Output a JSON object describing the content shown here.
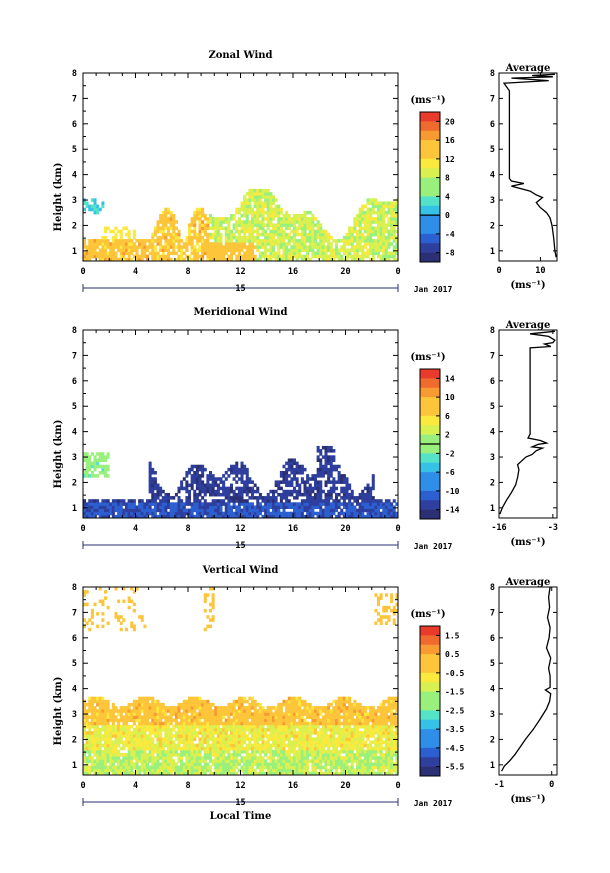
{
  "chart_data": [
    {
      "type": "heatmap",
      "title": "Zonal Wind",
      "ylabel": "Height (km)",
      "xticks": [
        "0",
        "4",
        "8",
        "12",
        "16",
        "20",
        "0"
      ],
      "yticks": [
        "1",
        "2",
        "3",
        "4",
        "5",
        "6",
        "7",
        "8"
      ],
      "day_label": "15",
      "date_label": "Jan 2017",
      "unit_label": "(ms⁻¹)",
      "colorbar": {
        "ticks": [
          "20",
          "16",
          "12",
          "8",
          "4",
          "0",
          "-4",
          "-8"
        ],
        "range": [
          -10,
          22
        ],
        "zero_line": 0
      },
      "avg_profile": {
        "title": "Average",
        "xticks": [
          "0",
          "10"
        ],
        "xlabel": "(ms⁻¹)",
        "xlim": [
          0,
          14
        ],
        "points": [
          [
            13.8,
            0.75
          ],
          [
            13.5,
            1.0
          ],
          [
            13.2,
            1.5
          ],
          [
            12.8,
            2.0
          ],
          [
            12.3,
            2.3
          ],
          [
            11.5,
            2.5
          ],
          [
            10.0,
            2.7
          ],
          [
            9.0,
            2.9
          ],
          [
            10.5,
            3.1
          ],
          [
            9.0,
            3.2
          ],
          [
            7.5,
            3.35
          ],
          [
            3.0,
            3.55
          ],
          [
            6.0,
            3.65
          ],
          [
            3.0,
            3.75
          ],
          [
            2.5,
            3.85
          ],
          [
            2.5,
            6.5
          ],
          [
            2.5,
            7.3
          ],
          [
            1.2,
            7.6
          ],
          [
            12.0,
            7.7
          ],
          [
            3.0,
            7.8
          ],
          [
            13.0,
            7.85
          ],
          [
            8.0,
            7.9
          ],
          [
            13.5,
            7.95
          ]
        ]
      }
    },
    {
      "type": "heatmap",
      "title": "Meridional Wind",
      "ylabel": "Height (km)",
      "xticks": [
        "0",
        "4",
        "8",
        "12",
        "16",
        "20",
        "0"
      ],
      "yticks": [
        "1",
        "2",
        "3",
        "4",
        "5",
        "6",
        "7",
        "8"
      ],
      "day_label": "15",
      "date_label": "Jan 2017",
      "unit_label": "(ms⁻¹)",
      "colorbar": {
        "ticks": [
          "14",
          "10",
          "6",
          "2",
          "-2",
          "-6",
          "-10",
          "-14"
        ],
        "range": [
          -16,
          16
        ],
        "zero_line": 0
      },
      "avg_profile": {
        "title": "Average",
        "xticks": [
          "-16",
          "-3"
        ],
        "xlabel": "(ms⁻¹)",
        "xlim": [
          -16,
          -2
        ],
        "points": [
          [
            -15.8,
            0.75
          ],
          [
            -15.2,
            1.0
          ],
          [
            -14.2,
            1.3
          ],
          [
            -13.0,
            1.6
          ],
          [
            -12.0,
            1.9
          ],
          [
            -11.5,
            2.2
          ],
          [
            -11.2,
            2.5
          ],
          [
            -11.5,
            2.7
          ],
          [
            -10.5,
            2.85
          ],
          [
            -9.5,
            3.0
          ],
          [
            -8.0,
            3.1
          ],
          [
            -7.0,
            3.25
          ],
          [
            -5.5,
            3.35
          ],
          [
            -8.0,
            3.4
          ],
          [
            -6.5,
            3.5
          ],
          [
            -4.5,
            3.55
          ],
          [
            -6.0,
            3.65
          ],
          [
            -9.0,
            3.75
          ],
          [
            -8.5,
            3.9
          ],
          [
            -8.5,
            6.5
          ],
          [
            -8.5,
            7.3
          ],
          [
            -3.5,
            7.35
          ],
          [
            -5.0,
            7.45
          ],
          [
            -3.0,
            7.5
          ],
          [
            -2.5,
            7.6
          ],
          [
            -4.0,
            7.75
          ],
          [
            -8.5,
            7.85
          ],
          [
            -2.5,
            7.95
          ]
        ]
      }
    },
    {
      "type": "heatmap",
      "title": "Vertical Wind",
      "ylabel": "Height (km)",
      "xlabel": "Local Time",
      "xticks": [
        "0",
        "4",
        "8",
        "12",
        "16",
        "20",
        "0"
      ],
      "yticks": [
        "1",
        "2",
        "3",
        "4",
        "5",
        "6",
        "7",
        "8"
      ],
      "day_label": "15",
      "date_label": "Jan 2017",
      "unit_label": "(ms⁻¹)",
      "colorbar": {
        "ticks": [
          "1.5",
          "0.5",
          "-0.5",
          "-1.5",
          "-2.5",
          "-3.5",
          "-4.5",
          "-5.5"
        ],
        "range": [
          -6,
          2
        ]
      },
      "avg_profile": {
        "title": "Average",
        "xticks": [
          "-1",
          "0"
        ],
        "xlabel": "(ms⁻¹)",
        "xlim": [
          -1,
          0.1
        ],
        "points": [
          [
            -0.95,
            0.75
          ],
          [
            -0.9,
            0.95
          ],
          [
            -0.8,
            1.15
          ],
          [
            -0.7,
            1.4
          ],
          [
            -0.6,
            1.7
          ],
          [
            -0.5,
            2.0
          ],
          [
            -0.35,
            2.4
          ],
          [
            -0.22,
            2.8
          ],
          [
            -0.1,
            3.2
          ],
          [
            -0.04,
            3.5
          ],
          [
            -0.02,
            3.8
          ],
          [
            -0.12,
            3.95
          ],
          [
            -0.03,
            4.05
          ],
          [
            -0.03,
            4.5
          ],
          [
            -0.06,
            4.8
          ],
          [
            -0.02,
            5.2
          ],
          [
            -0.1,
            5.6
          ],
          [
            -0.05,
            6.0
          ],
          [
            -0.03,
            6.4
          ],
          [
            -0.08,
            6.8
          ],
          [
            -0.04,
            7.2
          ],
          [
            -0.06,
            7.6
          ],
          [
            -0.03,
            8.0
          ]
        ]
      }
    }
  ]
}
